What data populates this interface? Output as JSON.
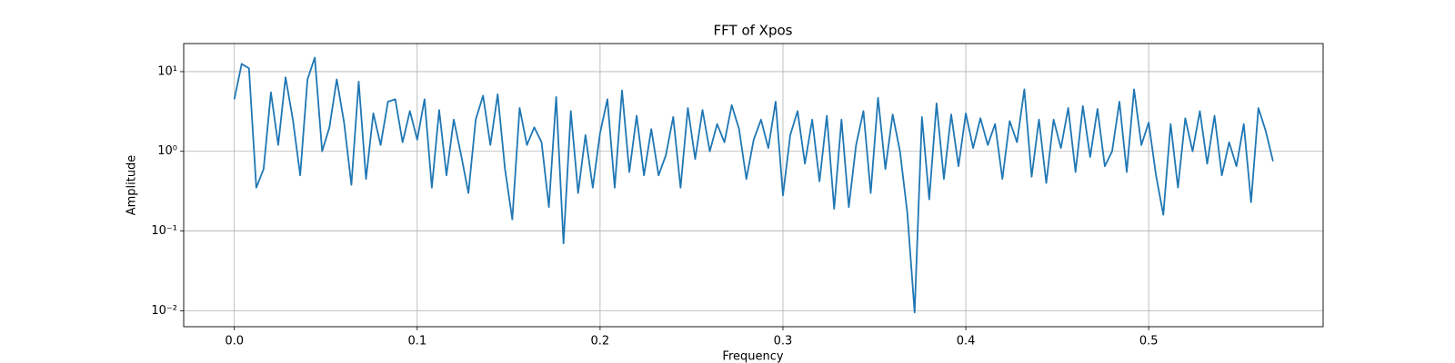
{
  "chart_data": {
    "type": "line",
    "title": "FFT of Xpos",
    "xlabel": "Frequency",
    "ylabel": "Amplitude",
    "x": [
      0,
      0.004,
      0.008,
      0.012,
      0.016,
      0.02,
      0.024,
      0.028,
      0.032,
      0.036,
      0.04,
      0.044,
      0.048,
      0.052,
      0.056,
      0.06,
      0.064,
      0.068,
      0.072,
      0.076,
      0.08,
      0.084,
      0.088,
      0.092,
      0.096,
      0.1,
      0.104,
      0.108,
      0.112,
      0.116,
      0.12,
      0.124,
      0.128,
      0.132,
      0.136,
      0.14,
      0.144,
      0.148,
      0.152,
      0.156,
      0.16,
      0.164,
      0.168,
      0.172,
      0.176,
      0.18,
      0.184,
      0.188,
      0.192,
      0.196,
      0.2,
      0.204,
      0.208,
      0.212,
      0.216,
      0.22,
      0.224,
      0.228,
      0.232,
      0.236,
      0.24,
      0.244,
      0.248,
      0.252,
      0.256,
      0.26,
      0.264,
      0.268,
      0.272,
      0.276,
      0.28,
      0.284,
      0.288,
      0.292,
      0.296,
      0.3,
      0.304,
      0.308,
      0.312,
      0.316,
      0.32,
      0.324,
      0.328,
      0.332,
      0.336,
      0.34,
      0.344,
      0.348,
      0.352,
      0.356,
      0.36,
      0.364,
      0.368,
      0.372,
      0.376,
      0.38,
      0.384,
      0.388,
      0.392,
      0.396,
      0.4,
      0.404,
      0.408,
      0.412,
      0.416,
      0.42,
      0.424,
      0.428,
      0.432,
      0.436,
      0.44,
      0.444,
      0.448,
      0.452,
      0.456,
      0.46,
      0.464,
      0.468,
      0.472,
      0.476,
      0.48,
      0.484,
      0.488,
      0.492,
      0.496,
      0.5,
      0.504,
      0.508,
      0.512,
      0.516,
      0.52,
      0.524,
      0.528,
      0.532,
      0.536,
      0.54,
      0.544,
      0.548,
      0.552,
      0.556,
      0.56,
      0.564,
      0.568
    ],
    "values": [
      4.5,
      12.5,
      11,
      0.35,
      0.6,
      5.5,
      1.2,
      8.5,
      2.5,
      0.5,
      8,
      15,
      1,
      2,
      8,
      2.3,
      0.38,
      7.5,
      0.45,
      3,
      1.2,
      4.2,
      4.5,
      1.3,
      3.2,
      1.4,
      4.5,
      0.35,
      3.3,
      0.5,
      2.5,
      0.9,
      0.3,
      2.5,
      5,
      1.2,
      5.2,
      0.6,
      0.14,
      3.5,
      1.2,
      2,
      1.3,
      0.2,
      4.8,
      0.07,
      3.2,
      0.3,
      1.6,
      0.35,
      1.7,
      4.5,
      0.35,
      5.8,
      0.55,
      2.8,
      0.5,
      1.9,
      0.5,
      0.9,
      2.7,
      0.35,
      3.5,
      0.8,
      3.3,
      1,
      2.2,
      1.3,
      3.8,
      1.9,
      0.45,
      1.4,
      2.5,
      1.1,
      4.2,
      0.28,
      1.6,
      3.2,
      0.7,
      2.5,
      0.42,
      2.8,
      0.19,
      2.5,
      0.2,
      1.2,
      3.2,
      0.3,
      4.7,
      0.6,
      2.9,
      1,
      0.17,
      0.0095,
      2.7,
      0.25,
      4,
      0.45,
      2.9,
      0.65,
      3,
      1.1,
      2.6,
      1.2,
      2.2,
      0.45,
      2.4,
      1.3,
      6,
      0.48,
      2.5,
      0.4,
      2.5,
      1.1,
      3.5,
      0.55,
      3.7,
      0.85,
      3.4,
      0.65,
      1,
      4.2,
      0.55,
      6,
      1.2,
      2.3,
      0.5,
      0.16,
      2.2,
      0.35,
      2.6,
      1,
      3.2,
      0.7,
      2.8,
      0.5,
      1.3,
      0.65,
      2.2,
      0.23,
      3.5,
      1.8,
      0.75
    ],
    "color": "#1f77b4",
    "xlim": [
      -0.0277,
      0.5954
    ],
    "xticks": [
      {
        "value": 0,
        "label": "0.0"
      },
      0.1,
      0.2,
      0.3,
      0.4,
      0.5
    ],
    "ylim": [
      0.0063,
      22.5
    ],
    "yscale": "log",
    "yticks": [
      {
        "value": 0.01,
        "label": "10⁻²"
      },
      {
        "value": 0.1,
        "label": "10⁻¹"
      },
      {
        "value": 1,
        "label": "10⁰"
      },
      {
        "value": 10,
        "label": "10¹"
      }
    ],
    "grid": true
  }
}
